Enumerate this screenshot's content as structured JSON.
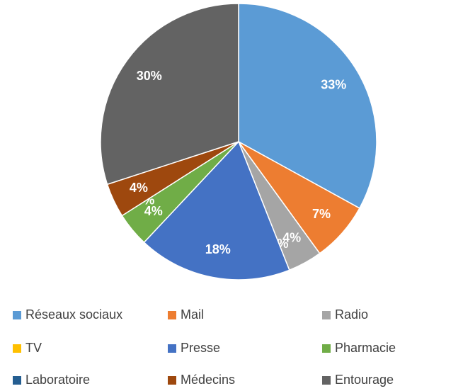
{
  "chart_data": {
    "type": "pie",
    "categories": [
      "Réseaux sociaux",
      "Mail",
      "Radio",
      "TV",
      "Presse",
      "Pharmacie",
      "Laboratoire",
      "Médecins",
      "Entourage"
    ],
    "values": [
      33,
      7,
      4,
      0,
      18,
      4,
      0,
      4,
      30
    ],
    "value_labels": [
      "33%",
      "7%",
      "4%",
      "0%",
      "18%",
      "4%",
      "0%",
      "4%",
      "30%"
    ],
    "colors": [
      "#5b9bd5",
      "#ed7d31",
      "#a5a5a5",
      "#ffc000",
      "#4472c4",
      "#70ad47",
      "#255e91",
      "#9e480e",
      "#636363"
    ],
    "legend": "bottom"
  }
}
